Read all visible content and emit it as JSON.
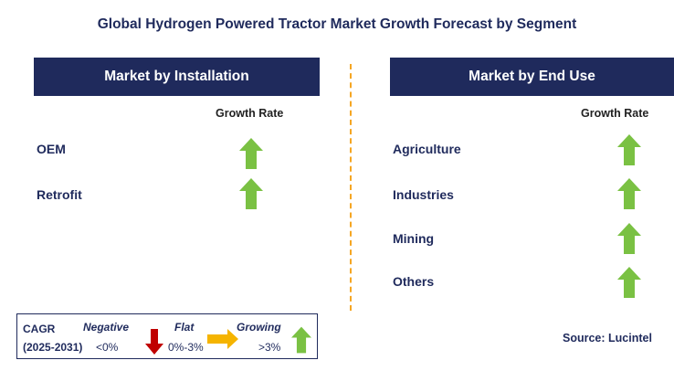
{
  "title": "Global Hydrogen Powered Tractor Market Growth Forecast by Segment",
  "left_panel": {
    "header": "Market by Installation",
    "growth_label": "Growth Rate",
    "rows": [
      {
        "label": "OEM",
        "trend": "growing"
      },
      {
        "label": "Retrofit",
        "trend": "growing"
      }
    ]
  },
  "right_panel": {
    "header": "Market by End Use",
    "growth_label": "Growth Rate",
    "rows": [
      {
        "label": "Agriculture",
        "trend": "growing"
      },
      {
        "label": "Industries",
        "trend": "growing"
      },
      {
        "label": "Mining",
        "trend": "growing"
      },
      {
        "label": "Others",
        "trend": "growing"
      }
    ]
  },
  "legend": {
    "cagr_label": "CAGR",
    "period": "(2025-2031)",
    "negative_label": "Negative",
    "negative_range": "<0%",
    "flat_label": "Flat",
    "flat_range": "0%-3%",
    "growing_label": "Growing",
    "growing_range": ">3%"
  },
  "source": "Source: Lucintel",
  "colors": {
    "navy": "#1f2a5c",
    "growing_arrow": "#7ac143",
    "negative_arrow": "#c00000",
    "flat_arrow": "#f5b400",
    "divider": "#f5a623"
  }
}
